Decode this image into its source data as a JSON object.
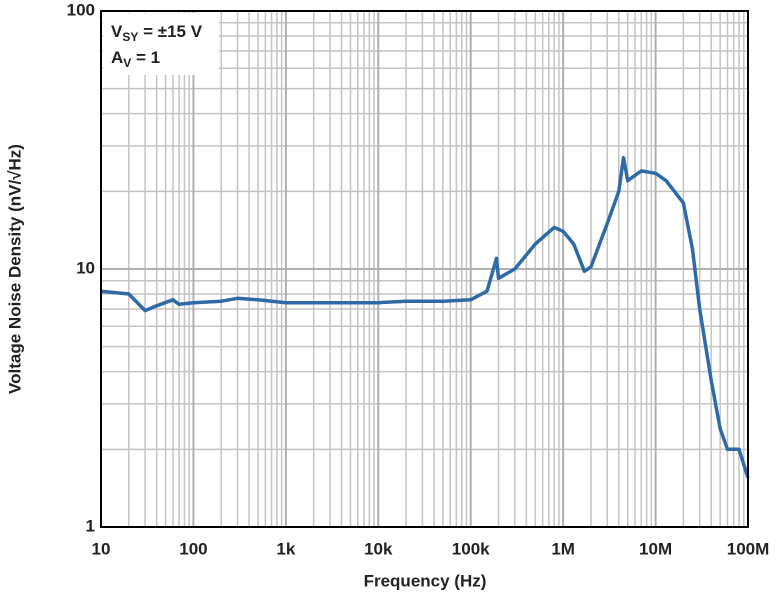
{
  "chart_data": {
    "type": "line",
    "xlabel": "Frequency (Hz)",
    "ylabel": "Voltage Noise Density (nV/√Hz)",
    "annotations": [
      {
        "main": "V",
        "sub": "SY",
        "tail": " = ±15 V"
      },
      {
        "main": "A",
        "sub": "V",
        "tail": " = 1"
      }
    ],
    "xscale": "log",
    "yscale": "log",
    "grid": true,
    "minor_grid": true,
    "xlim": [
      10,
      100000000
    ],
    "ylim": [
      1,
      100
    ],
    "xticks": [
      10,
      100,
      {
        "value": 1000,
        "label": "1k"
      },
      {
        "value": 10000,
        "label": "10k"
      },
      {
        "value": 100000,
        "label": "100k"
      },
      {
        "value": 1000000,
        "label": "1M"
      },
      {
        "value": 10000000,
        "label": "10M"
      },
      {
        "value": 100000000,
        "label": "100M"
      }
    ],
    "yticks": [
      1,
      10,
      100
    ],
    "series": [
      {
        "color": "#2f6aa7",
        "x": [
          10,
          20,
          30,
          40,
          60,
          70,
          100,
          200,
          300,
          500,
          1000,
          2000,
          5000,
          10000,
          20000,
          50000,
          100000,
          150000,
          190000,
          200000,
          300000,
          500000,
          800000,
          1000000,
          1300000,
          1700000,
          2000000,
          3000000,
          4000000,
          4500000,
          5000000,
          7000000,
          10000000,
          13000000,
          16000000,
          20000000,
          25000000,
          30000000,
          40000000,
          50000000,
          60000000,
          80000000,
          100000000
        ],
        "values": [
          8.2,
          8.0,
          6.9,
          7.2,
          7.6,
          7.3,
          7.4,
          7.5,
          7.7,
          7.6,
          7.4,
          7.4,
          7.4,
          7.4,
          7.5,
          7.5,
          7.6,
          8.2,
          11,
          9.2,
          10.0,
          12.5,
          14.5,
          14.0,
          12.5,
          9.8,
          10.2,
          15,
          20,
          27,
          22,
          24,
          23.5,
          22,
          20,
          18,
          12,
          7,
          3.7,
          2.4,
          2.0,
          2.0,
          1.55
        ]
      }
    ]
  }
}
